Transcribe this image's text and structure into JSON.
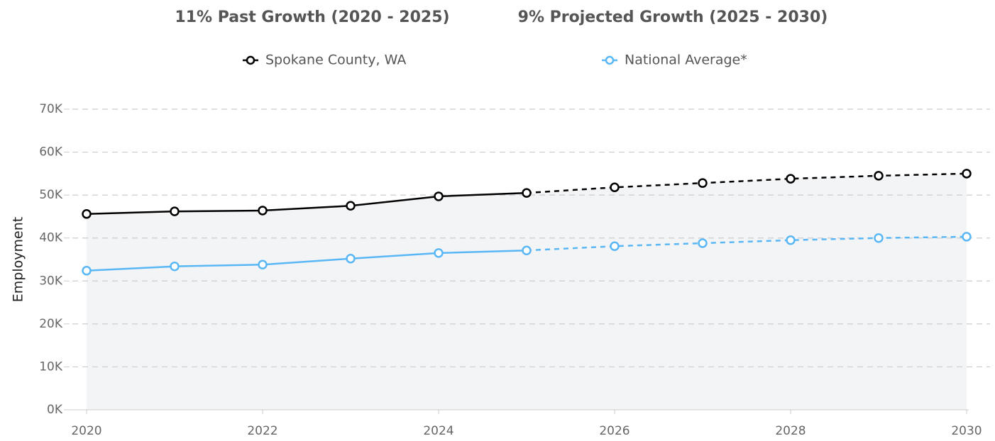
{
  "chart_data": {
    "type": "line",
    "headlines": [
      "11% Past Growth (2020 - 2025)",
      "9% Projected Growth (2025 - 2030)"
    ],
    "ylabel": "Employment",
    "x": [
      2020,
      2021,
      2022,
      2023,
      2024,
      2025,
      2026,
      2027,
      2028,
      2029,
      2030
    ],
    "series": [
      {
        "name": "Spokane County, WA",
        "color": "#000000",
        "values": [
          45600,
          46200,
          46400,
          47500,
          49700,
          50500,
          51800,
          52800,
          53800,
          54500,
          55000
        ]
      },
      {
        "name": "National Average*",
        "color": "#5ab7f5",
        "values": [
          32400,
          33400,
          33800,
          35200,
          36500,
          37100,
          38100,
          38800,
          39500,
          40000,
          40300
        ]
      }
    ],
    "projection_start": 2025,
    "area_color": "#f3f4f6",
    "xlim": [
      2020,
      2030
    ],
    "xticks": [
      2020,
      2022,
      2024,
      2026,
      2028,
      2030
    ],
    "ylim": [
      0,
      70000
    ],
    "yticks": [
      {
        "value": 0,
        "label": "0K"
      },
      {
        "value": 10000,
        "label": "10K"
      },
      {
        "value": 20000,
        "label": "20K"
      },
      {
        "value": 30000,
        "label": "30K"
      },
      {
        "value": 40000,
        "label": "40K"
      },
      {
        "value": 50000,
        "label": "50K"
      },
      {
        "value": 60000,
        "label": "60K"
      },
      {
        "value": 70000,
        "label": "70K"
      }
    ],
    "grid": true
  }
}
